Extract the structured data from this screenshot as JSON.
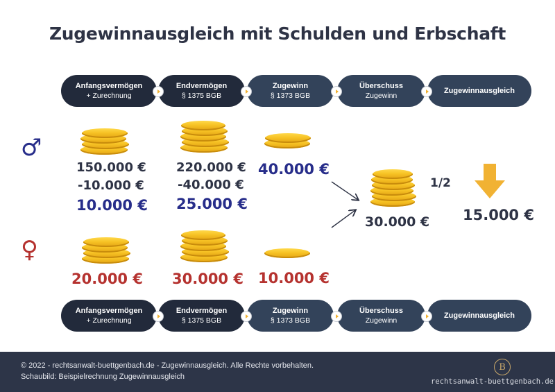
{
  "title": "Zugewinnausgleich mit Schulden und Erbschaft",
  "steps": [
    {
      "l1": "Anfangsvermögen",
      "l2": "+ Zurechnung"
    },
    {
      "l1": "Endvermögen",
      "l2": "§ 1375 BGB"
    },
    {
      "l1": "Zugewinn",
      "l2": "§ 1373 BGB"
    },
    {
      "l1": "Überschuss",
      "l2": "Zugewinn"
    },
    {
      "l1": "Zugewinnausgleich",
      "l2": ""
    }
  ],
  "male": {
    "symbol": "♂",
    "anfang": [
      "150.000 €",
      "-10.000 €",
      "10.000 €"
    ],
    "end": [
      "220.000 €",
      "-40.000 €",
      "25.000 €"
    ],
    "zugewinn": "40.000 €"
  },
  "female": {
    "symbol": "♀",
    "anfang": "20.000 €",
    "end": "30.000 €",
    "zugewinn": "10.000 €"
  },
  "ueberschuss": "30.000 €",
  "half": "1/2",
  "ausgleich": "15.000 €",
  "colors": {
    "blue": "#272d8a",
    "red": "#b5322f",
    "gold": "#f1b233",
    "navy": "#2d3548"
  },
  "footer": {
    "line1": "© 2022 - rechtsanwalt-buettgenbach.de - Zugewinnausgleich. Alle Rechte vorbehalten.",
    "line2": "Schaubild: Beispielrechnung Zugewinnausgleich",
    "logo": "B",
    "site": "rechtsanwalt-buettgenbach.de"
  }
}
